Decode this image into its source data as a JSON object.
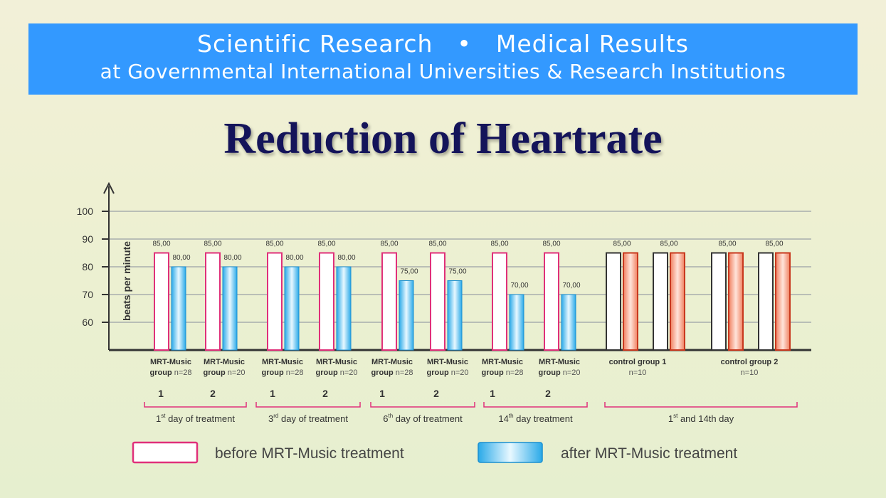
{
  "header": {
    "line1_left": "Scientific Research",
    "line1_sep": "•",
    "line1_right": "Medical Results",
    "line2": "at Governmental International Universities & Research Institutions"
  },
  "chart_data": {
    "type": "bar",
    "title": "Reduction of Heartrate",
    "ylabel": "beats per minute",
    "ylim": [
      50,
      100
    ],
    "yticks": [
      60,
      70,
      80,
      90,
      100
    ],
    "series": [
      {
        "name": "before MRT-Music treatment",
        "values": [
          85,
          85,
          85,
          85,
          85,
          85,
          85,
          85,
          85,
          85
        ]
      },
      {
        "name": "after MRT-Music treatment",
        "values": [
          80,
          80,
          80,
          80,
          75,
          75,
          70,
          70,
          85,
          85
        ]
      }
    ],
    "categories": [
      {
        "line1": "MRT-Music",
        "line2a": "group",
        "line2b": "n=28"
      },
      {
        "line1": "MRT-Music",
        "line2a": "group",
        "line2b": "n=20"
      },
      {
        "line1": "MRT-Music",
        "line2a": "group",
        "line2b": "n=28"
      },
      {
        "line1": "MRT-Music",
        "line2a": "group",
        "line2b": "n=20"
      },
      {
        "line1": "MRT-Music",
        "line2a": "group",
        "line2b": "n=28"
      },
      {
        "line1": "MRT-Music",
        "line2a": "group",
        "line2b": "n=20"
      },
      {
        "line1": "MRT-Music",
        "line2a": "group",
        "line2b": "n=28"
      },
      {
        "line1": "MRT-Music",
        "line2a": "group",
        "line2b": "n=20"
      },
      {
        "line1": "control group 1",
        "line2a": "",
        "line2b": "n=10"
      },
      {
        "line1": "control group 2",
        "line2a": "",
        "line2b": "n=10"
      }
    ],
    "value_labels_before": [
      "85,00",
      "85,00",
      "85,00",
      "85,00",
      "85,00",
      "85,00",
      "85,00",
      "85,00",
      "85,00",
      "85,00"
    ],
    "value_labels_after": [
      "80,00",
      "80,00",
      "80,00",
      "80,00",
      "75,00",
      "75,00",
      "70,00",
      "70,00",
      "",
      ""
    ],
    "group_numbers": [
      "1",
      "2",
      "1",
      "2",
      "1",
      "2",
      "1",
      "2",
      "",
      ""
    ],
    "periods": [
      {
        "pre": "1",
        "sup": "st",
        "post": "day of treatment"
      },
      {
        "pre": "3",
        "sup": "rd",
        "post": "day of treatment"
      },
      {
        "pre": "6",
        "sup": "th",
        "post": "day of treatment"
      },
      {
        "pre": "14",
        "sup": "th",
        "post": "day treatment"
      },
      {
        "pre": "1",
        "sup": "st",
        "post": "and 14th day"
      }
    ],
    "colors": {
      "before_border": "#e0307a",
      "after_fill": "#29a9e8",
      "control_after_border": "#c8381e",
      "control_after_fill": "#f08060",
      "control_before_border": "#333333",
      "axis": "#333333",
      "period_bracket": "#e0307a"
    },
    "legend": {
      "before": "before MRT-Music treatment",
      "after": "after MRT-Music treatment",
      "position": "bottom"
    }
  }
}
